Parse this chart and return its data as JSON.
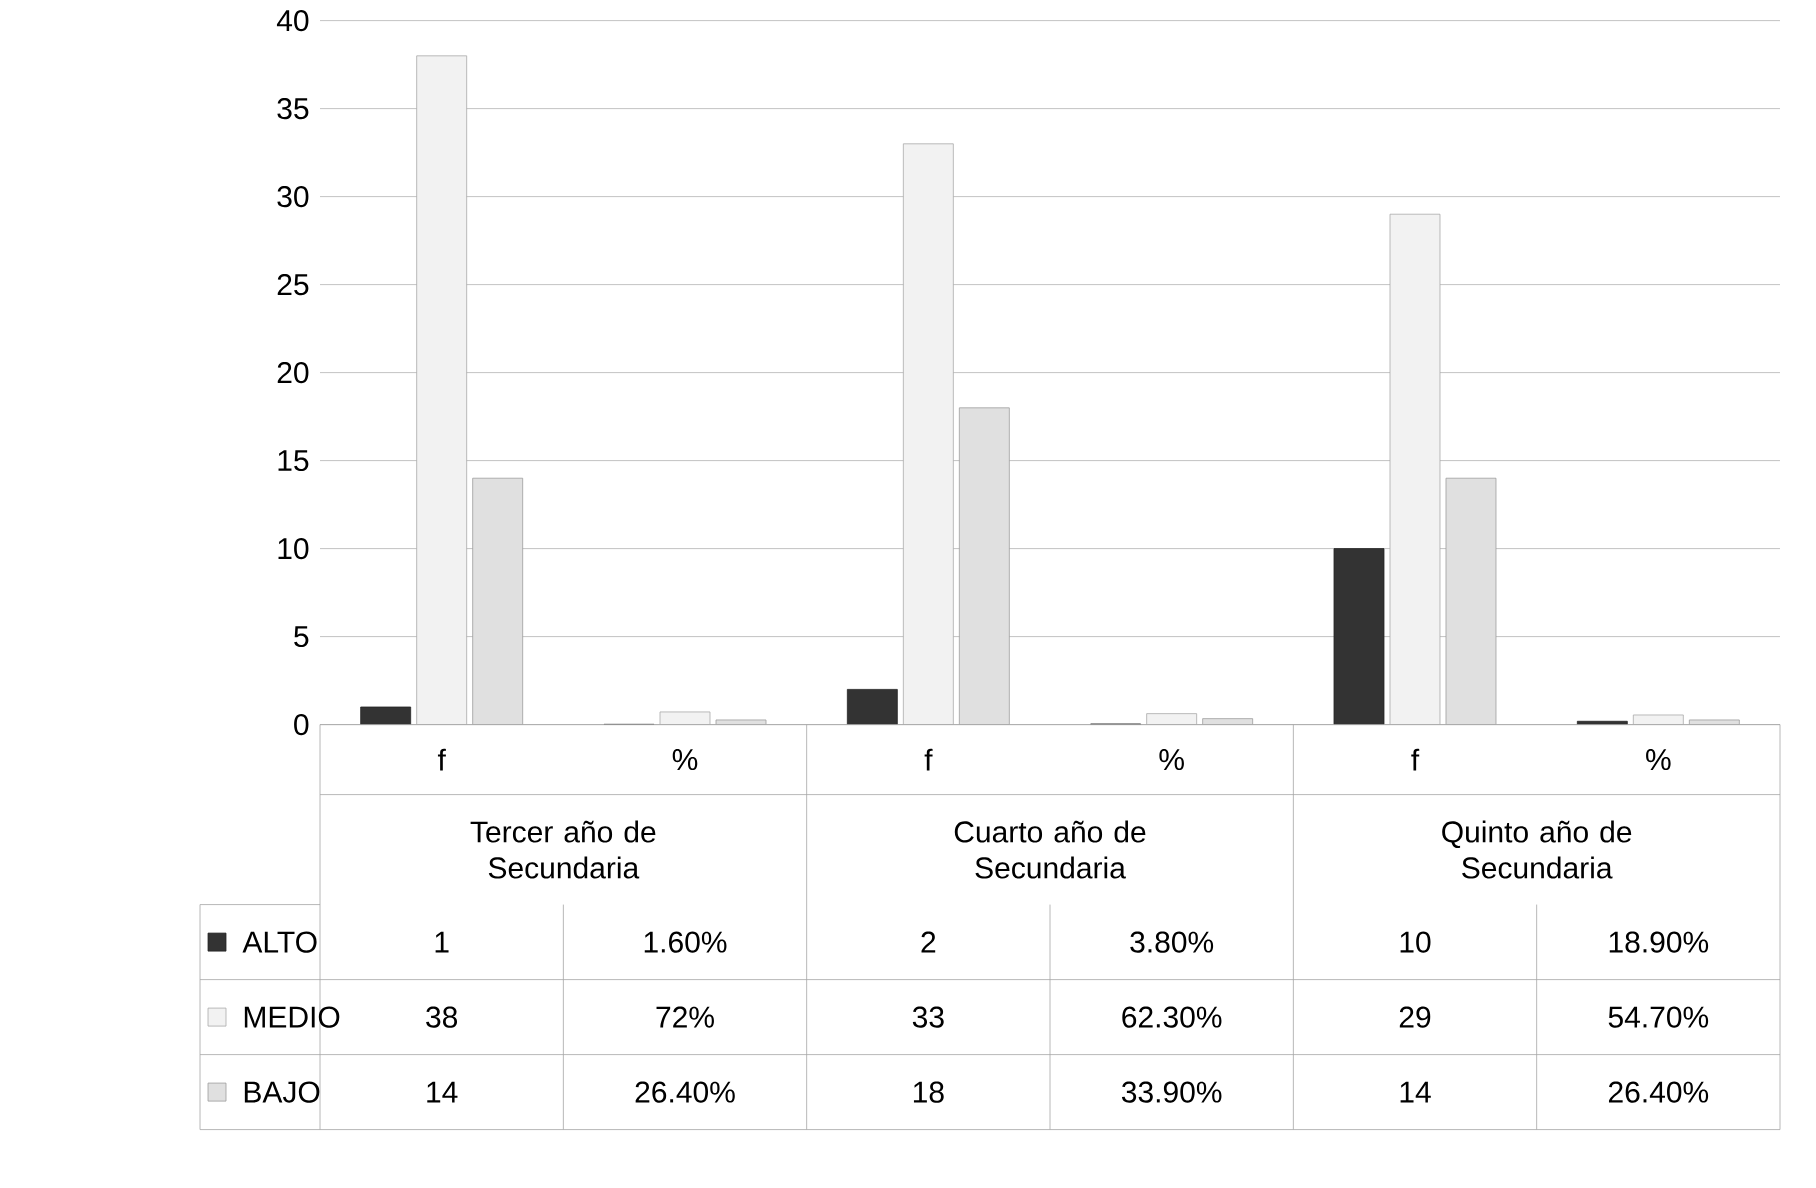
{
  "chart_data": {
    "type": "bar",
    "categories": [
      "f",
      "%",
      "f",
      "%",
      "f",
      "%"
    ],
    "annotations": [
      "Tercer año de Secundaria",
      "Cuarto año de Secundaria",
      "Quinto año de Secundaria"
    ],
    "series": [
      {
        "name": "ALTO",
        "color": "#333333",
        "values": [
          1,
          0.016,
          2,
          0.038,
          10,
          0.189
        ],
        "value_labels": [
          "1",
          "1.60%",
          "2",
          "3.80%",
          "10",
          "18.90%"
        ]
      },
      {
        "name": "MEDIO",
        "color": "#f2f2f2",
        "values": [
          38,
          0.72,
          33,
          0.623,
          29,
          0.547
        ],
        "value_labels": [
          "38",
          "72%",
          "33",
          "62.30%",
          "29",
          "54.70%"
        ]
      },
      {
        "name": "BAJO",
        "color": "#e0e0e0",
        "values": [
          14,
          0.264,
          18,
          0.339,
          14,
          0.264
        ],
        "value_labels": [
          "14",
          "26.40%",
          "18",
          "33.90%",
          "14",
          "26.40%"
        ]
      }
    ],
    "ylim": [
      0,
      40
    ],
    "yticks": [
      0,
      5,
      10,
      15,
      20,
      25,
      30,
      35,
      40
    ],
    "grid": "y",
    "legend": "bottom"
  }
}
